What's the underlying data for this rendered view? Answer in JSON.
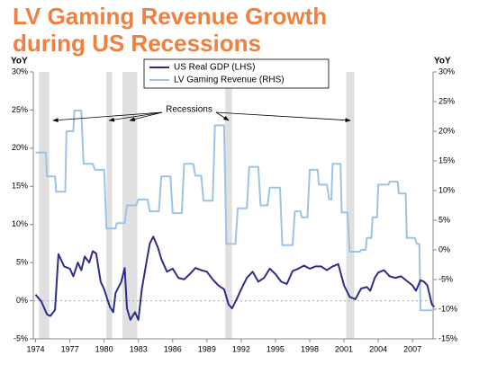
{
  "chart_data": {
    "type": "line",
    "title_lines": [
      "LV Gaming Revenue Growth",
      "during US Recessions"
    ],
    "y_label": "YoY",
    "y2_label": "YoY",
    "annotation": "Recessions",
    "xlim": [
      1973.8,
      2008.8
    ],
    "xticks": [
      1974,
      1977,
      1980,
      1983,
      1986,
      1989,
      1992,
      1995,
      1998,
      2001,
      2004,
      2007
    ],
    "ylim": [
      -5,
      30
    ],
    "yticks": [
      {
        "value": -5,
        "label": "-5%"
      },
      {
        "value": 0,
        "label": "0%"
      },
      {
        "value": 5,
        "label": "5%"
      },
      {
        "value": 10,
        "label": "10%"
      },
      {
        "value": 15,
        "label": "15%"
      },
      {
        "value": 20,
        "label": "20%"
      },
      {
        "value": 25,
        "label": "25%"
      },
      {
        "value": 30,
        "label": "30%"
      }
    ],
    "y2lim": [
      -15,
      30
    ],
    "y2ticks": [
      {
        "value": -15,
        "label": "-15%"
      },
      {
        "value": -10,
        "label": "-10%"
      },
      {
        "value": -5,
        "label": "-5%"
      },
      {
        "value": 0,
        "label": "0%"
      },
      {
        "value": 5,
        "label": "5%"
      },
      {
        "value": 10,
        "label": "10%"
      },
      {
        "value": 15,
        "label": "15%"
      },
      {
        "value": 20,
        "label": "20%"
      },
      {
        "value": 25,
        "label": "25%"
      },
      {
        "value": 30,
        "label": "30%"
      }
    ],
    "grid": false,
    "recession_color": "#e0e0e0",
    "recessions": [
      [
        1974.3,
        1975.2
      ],
      [
        1980.2,
        1980.7
      ],
      [
        1981.6,
        1982.9
      ],
      [
        1990.6,
        1991.2
      ],
      [
        2001.2,
        2001.9
      ]
    ],
    "series": [
      {
        "name": "US Real GDP (LHS)",
        "color": "#2e2e8a",
        "axis": "y",
        "x": [
          1974.0,
          1974.5,
          1975.0,
          1975.3,
          1975.7,
          1976.0,
          1976.5,
          1977.0,
          1977.3,
          1977.7,
          1978.0,
          1978.3,
          1978.7,
          1979.0,
          1979.3,
          1979.7,
          1980.0,
          1980.5,
          1980.8,
          1981.0,
          1981.5,
          1981.8,
          1982.0,
          1982.3,
          1982.7,
          1983.0,
          1983.3,
          1983.7,
          1984.0,
          1984.3,
          1984.7,
          1985.0,
          1985.5,
          1986.0,
          1986.5,
          1987.0,
          1987.5,
          1988.0,
          1988.5,
          1989.0,
          1989.5,
          1990.0,
          1990.5,
          1990.9,
          1991.2,
          1991.6,
          1992.0,
          1992.5,
          1993.0,
          1993.5,
          1994.0,
          1994.5,
          1995.0,
          1995.5,
          1996.0,
          1996.5,
          1997.0,
          1997.5,
          1998.0,
          1998.5,
          1999.0,
          1999.5,
          2000.0,
          2000.5,
          2001.0,
          2001.5,
          2002.0,
          2002.5,
          2003.0,
          2003.3,
          2003.7,
          2004.0,
          2004.5,
          2005.0,
          2005.5,
          2006.0,
          2006.5,
          2007.0,
          2007.3,
          2007.7,
          2008.0,
          2008.3,
          2008.7,
          2008.9
        ],
        "values": [
          0.8,
          -0.1,
          -1.8,
          -2.0,
          -1.2,
          6.1,
          4.5,
          4.2,
          3.2,
          5.0,
          4.0,
          5.8,
          5.0,
          6.5,
          6.2,
          2.5,
          1.5,
          -0.8,
          -1.5,
          1.0,
          2.5,
          4.3,
          -1.0,
          -2.5,
          -1.5,
          -2.5,
          1.5,
          5.0,
          7.5,
          8.4,
          7.0,
          5.5,
          3.8,
          4.2,
          3.0,
          2.8,
          3.5,
          4.3,
          4.0,
          3.8,
          2.8,
          2.0,
          1.5,
          -0.5,
          -1.0,
          0.2,
          1.5,
          3.0,
          3.8,
          2.5,
          3.0,
          4.2,
          3.5,
          2.5,
          2.2,
          3.9,
          4.2,
          4.6,
          4.2,
          4.5,
          4.5,
          4.0,
          4.5,
          4.8,
          2.0,
          0.5,
          0.2,
          1.6,
          1.8,
          1.3,
          3.0,
          3.7,
          4.0,
          3.2,
          3.0,
          3.2,
          2.6,
          2.0,
          1.3,
          2.7,
          2.5,
          2.0,
          -0.5,
          -0.8
        ]
      },
      {
        "name": "LV Gaming Revenue (RHS)",
        "color": "#9dc3e6",
        "axis": "y2",
        "x": [
          1974.0,
          1974.9,
          1975.0,
          1975.7,
          1975.8,
          1976.6,
          1976.7,
          1977.3,
          1977.4,
          1978.0,
          1978.2,
          1979.0,
          1979.2,
          1980.0,
          1980.2,
          1981.0,
          1981.1,
          1981.8,
          1982.0,
          1982.8,
          1983.0,
          1983.8,
          1984.0,
          1984.8,
          1985.0,
          1985.8,
          1986.0,
          1986.8,
          1987.0,
          1987.8,
          1988.0,
          1988.5,
          1988.7,
          1989.5,
          1989.7,
          1990.5,
          1990.7,
          1991.5,
          1991.7,
          1992.5,
          1992.7,
          1993.5,
          1993.7,
          1994.3,
          1994.5,
          1995.4,
          1995.6,
          1996.5,
          1996.7,
          1997.2,
          1997.3,
          1997.8,
          1998.0,
          1998.7,
          1998.8,
          1999.5,
          1999.7,
          1999.9,
          2000.0,
          2000.7,
          2000.8,
          2001.3,
          2001.5,
          2002.4,
          2002.5,
          2002.9,
          2003.0,
          2003.4,
          2003.5,
          2003.9,
          2004.0,
          2004.9,
          2005.0,
          2005.7,
          2005.8,
          2006.4,
          2006.5,
          2007.2,
          2007.4,
          2007.6,
          2007.7,
          2008.9
        ],
        "values": [
          16.4,
          16.4,
          12.4,
          12.4,
          9.8,
          9.8,
          20.0,
          20.0,
          23.5,
          23.5,
          14.5,
          14.5,
          13.5,
          13.5,
          3.6,
          3.6,
          4.5,
          4.5,
          7.5,
          7.5,
          8.5,
          8.5,
          6.5,
          6.5,
          12.4,
          12.4,
          6.2,
          6.2,
          14.5,
          14.5,
          12.5,
          12.5,
          8.3,
          8.3,
          21.0,
          21.0,
          1.0,
          1.0,
          7.0,
          7.0,
          14.0,
          14.0,
          7.5,
          7.5,
          10.5,
          10.5,
          0.8,
          0.8,
          6.5,
          6.5,
          5.5,
          5.5,
          13.5,
          13.5,
          11.0,
          11.0,
          8.5,
          8.5,
          14.5,
          14.5,
          6.3,
          6.3,
          -0.3,
          -0.3,
          0,
          0,
          2.0,
          2.0,
          5.5,
          5.5,
          11.0,
          11.0,
          11.5,
          11.5,
          9.5,
          9.5,
          2.0,
          2.0,
          1.0,
          1.0,
          -10.2,
          -10.2
        ]
      }
    ]
  }
}
